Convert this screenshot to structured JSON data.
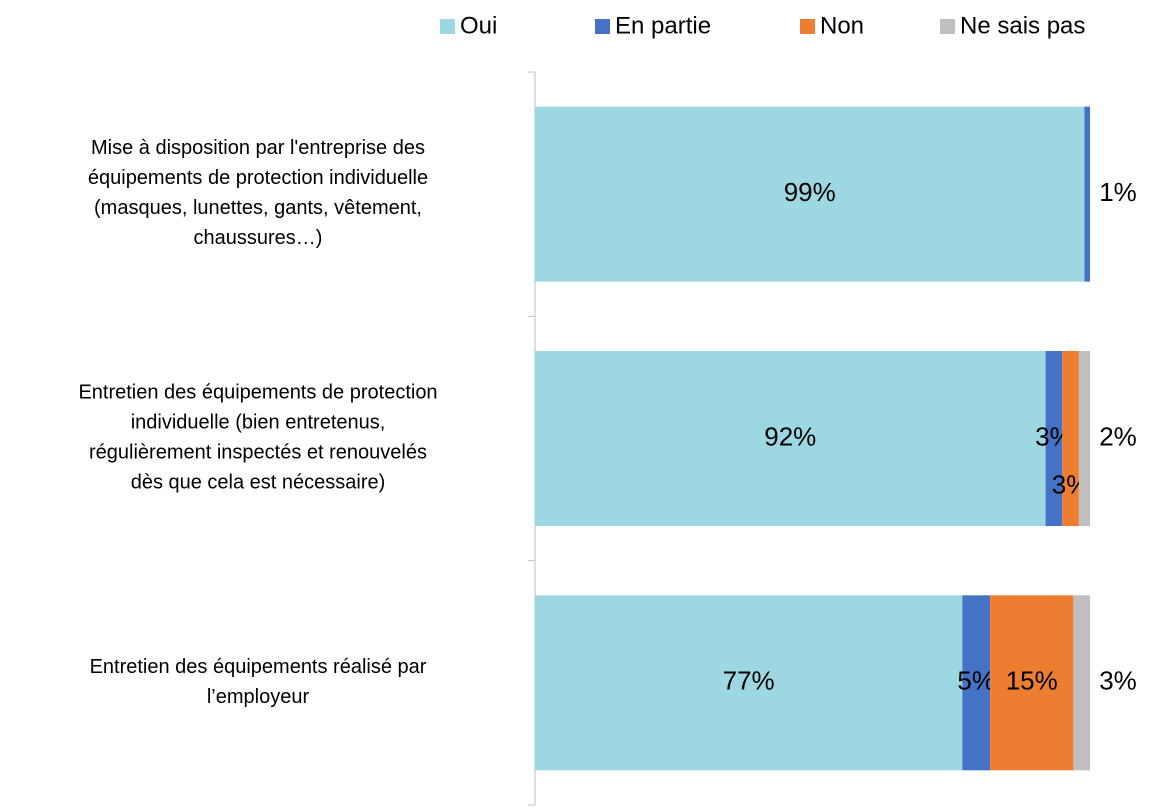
{
  "chart_data": {
    "type": "stacked-bar-horizontal",
    "categories": [
      "Mise à disposition par l'entreprise des\néquipements de protection individuelle\n(masques, lunettes, gants, vêtement,\nchaussures…)",
      "Entretien des équipements de protection\nindividuelle (bien entretenus,\nrégulièrement inspectés et renouvelés\ndès que cela est nécessaire)",
      "Entretien des équipements réalisé par\nl’employeur"
    ],
    "series": [
      {
        "name": "Oui",
        "color": "#9dd8e2",
        "values": [
          99,
          92,
          77
        ],
        "value_labels": [
          "99%",
          "92%",
          "77%"
        ]
      },
      {
        "name": "En partie",
        "color": "#4472c4",
        "values": [
          1,
          3,
          5
        ],
        "value_labels": [
          "1%",
          "3%",
          "5%"
        ]
      },
      {
        "name": "Non",
        "color": "#ed7d31",
        "values": [
          0,
          3,
          15
        ],
        "value_labels": [
          null,
          "3%",
          "15%"
        ]
      },
      {
        "name": "Ne sais pas",
        "color": "#bfbfbf",
        "values": [
          0,
          2,
          3
        ],
        "value_labels": [
          null,
          "2%",
          "3%"
        ]
      }
    ],
    "xlim": [
      0,
      100
    ],
    "legend": "top"
  }
}
